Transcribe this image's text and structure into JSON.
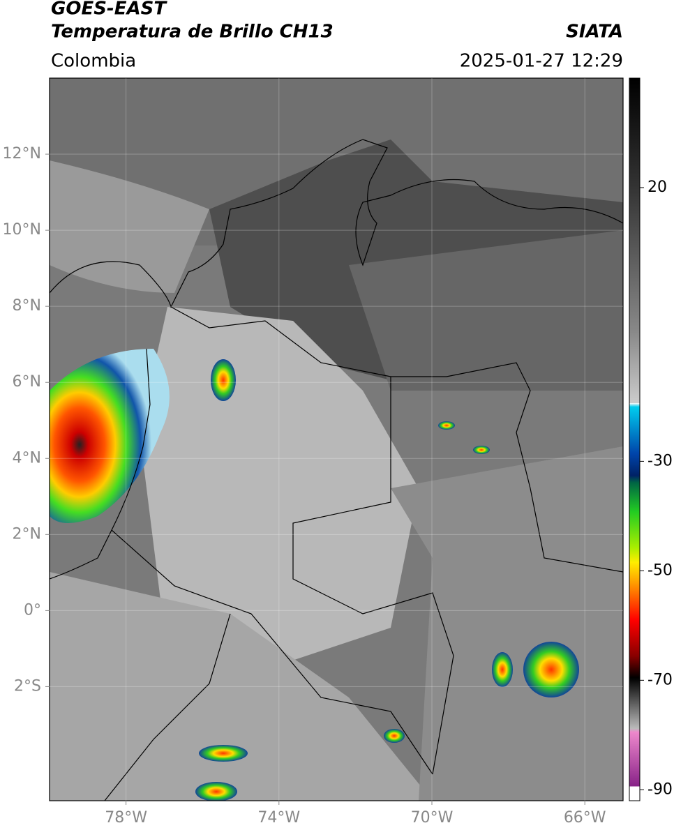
{
  "header": {
    "title": "GOES-EAST",
    "subtitle": "Temperatura de Brillo CH13",
    "source": "SIATA",
    "region": "Colombia",
    "datetime": "2025-01-27 12:29"
  },
  "map": {
    "xlim": [
      -80,
      -65
    ],
    "ylim": [
      -5,
      14
    ],
    "xticks": [
      {
        "value": -78,
        "label": "78°W"
      },
      {
        "value": -74,
        "label": "74°W"
      },
      {
        "value": -70,
        "label": "70°W"
      },
      {
        "value": -66,
        "label": "66°W"
      }
    ],
    "yticks": [
      {
        "value": 12,
        "label": "12°N"
      },
      {
        "value": 10,
        "label": "10°N"
      },
      {
        "value": 8,
        "label": "8°N"
      },
      {
        "value": 6,
        "label": "6°N"
      },
      {
        "value": 4,
        "label": "4°N"
      },
      {
        "value": 2,
        "label": "2°N"
      },
      {
        "value": 0,
        "label": "0°"
      },
      {
        "value": -2,
        "label": "2°S"
      }
    ],
    "grid": true
  },
  "colorbar": {
    "lim": [
      -92,
      40
    ],
    "ticks": [
      20,
      -30,
      -50,
      -70,
      -90
    ]
  }
}
